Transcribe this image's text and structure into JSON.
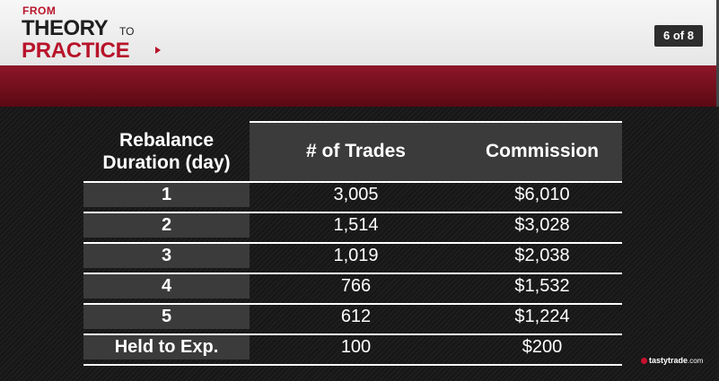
{
  "header": {
    "logo": {
      "from": "FROM",
      "theory": "THEORY",
      "to": "TO",
      "practice": "PRACTICE"
    },
    "page_indicator": "6 of 8"
  },
  "table": {
    "columns": [
      "Rebalance Duration (day)",
      "# of Trades",
      "Commission"
    ],
    "rows": [
      [
        "1",
        "3,005",
        "$6,010"
      ],
      [
        "2",
        "1,514",
        "$3,028"
      ],
      [
        "3",
        "1,019",
        "$2,038"
      ],
      [
        "4",
        "766",
        "$1,532"
      ],
      [
        "5",
        "612",
        "$1,224"
      ],
      [
        "Held to Exp.",
        "100",
        "$200"
      ]
    ]
  },
  "footer": {
    "brand": "tastytrade",
    "brand_suffix": ".com"
  },
  "colors": {
    "brand_red": "#b8142a",
    "band_red": "#7a0f1f",
    "dark_cell": "#3b3b3b"
  }
}
